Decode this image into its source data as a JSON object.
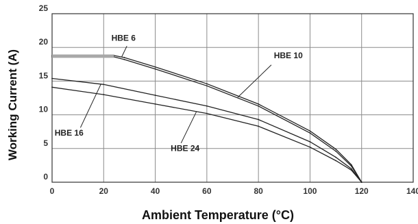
{
  "chart_data": {
    "type": "line",
    "xlabel": "Ambient Temperature (°C)",
    "ylabel": "Working Current (A)",
    "xlim": [
      0,
      140
    ],
    "ylim": [
      0,
      25
    ],
    "x_ticks": [
      0,
      20,
      40,
      60,
      80,
      100,
      120,
      140
    ],
    "y_ticks": [
      0,
      5,
      10,
      15,
      20,
      25
    ],
    "grid": true,
    "series": [
      {
        "name": "HBE 6",
        "x": [
          0,
          24,
          28,
          40,
          60,
          80,
          100,
          110,
          116,
          120
        ],
        "y": [
          18.8,
          18.8,
          18.5,
          17.1,
          14.6,
          11.6,
          7.6,
          4.9,
          2.6,
          0
        ]
      },
      {
        "name": "HBE 10",
        "x": [
          0,
          24,
          28,
          40,
          60,
          80,
          100,
          110,
          116,
          120
        ],
        "y": [
          18.6,
          18.6,
          18.2,
          16.8,
          14.3,
          11.3,
          7.3,
          4.6,
          2.4,
          0
        ]
      },
      {
        "name": "HBE 16",
        "x": [
          0,
          20,
          40,
          60,
          80,
          100,
          110,
          116,
          120
        ],
        "y": [
          15.4,
          14.5,
          12.9,
          11.3,
          9.3,
          6.0,
          3.7,
          2.0,
          0
        ]
      },
      {
        "name": "HBE 24",
        "x": [
          0,
          20,
          40,
          60,
          80,
          100,
          110,
          116,
          120
        ],
        "y": [
          14.1,
          13.0,
          11.6,
          10.2,
          8.3,
          5.2,
          3.2,
          1.8,
          0
        ]
      }
    ]
  }
}
